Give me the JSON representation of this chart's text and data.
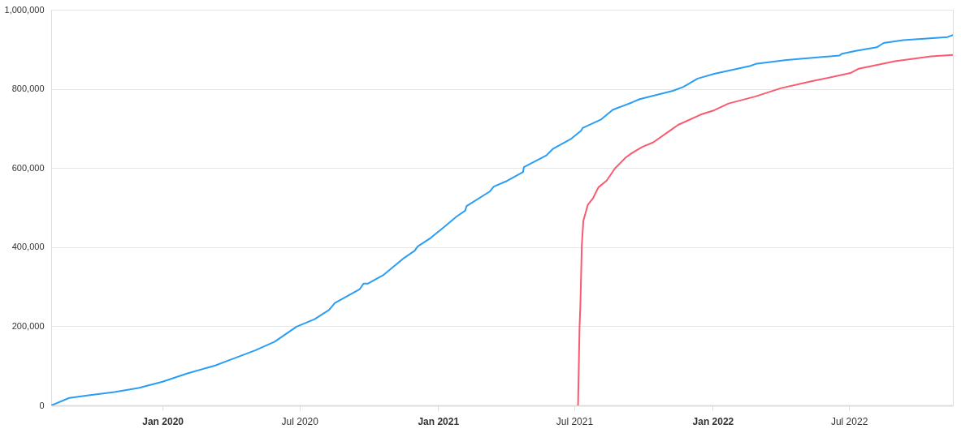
{
  "chart_data": {
    "type": "line",
    "xlim": [
      "2019-08-06",
      "2022-11-16"
    ],
    "xticks": [
      {
        "value": "2020-01-01",
        "label": "Jan 2020"
      },
      {
        "value": "2020-07-01",
        "label": "Jul 2020"
      },
      {
        "value": "2021-01-01",
        "label": "Jan 2021"
      },
      {
        "value": "2021-07-01",
        "label": "Jul 2021"
      },
      {
        "value": "2022-01-01",
        "label": "Jan 2022"
      },
      {
        "value": "2022-07-01",
        "label": "Jul 2022"
      }
    ],
    "ylim": [
      0,
      1000000
    ],
    "yticks": [
      0,
      {
        "value": 200000,
        "label": "200,000"
      },
      {
        "value": 400000,
        "label": "400,000"
      },
      {
        "value": 600000,
        "label": "600,000"
      },
      {
        "value": 800000,
        "label": "800,000"
      },
      {
        "value": 1000000,
        "label": "1,000,000"
      }
    ],
    "grid": "y",
    "series": [
      {
        "color": "#2a9df4",
        "x": [
          "2019-08-06",
          "2019-08-30",
          "2019-09-27",
          "2019-10-29",
          "2019-11-30",
          "2020-01-01",
          "2020-02-03",
          "2020-03-11",
          "2020-03-29",
          "2020-05-03",
          "2020-05-29",
          "2020-06-27",
          "2020-07-21",
          "2020-08-09",
          "2020-08-17",
          "2020-09-19",
          "2020-09-24",
          "2020-09-30",
          "2020-10-20",
          "2020-11-15",
          "2020-12-01",
          "2020-12-05",
          "2020-12-22",
          "2021-01-09",
          "2021-01-26",
          "2021-02-06",
          "2021-02-08",
          "2021-03-11",
          "2021-03-16",
          "2021-04-01",
          "2021-04-24",
          "2021-04-25",
          "2021-05-25",
          "2021-06-03",
          "2021-06-27",
          "2021-07-10",
          "2021-07-12",
          "2021-08-05",
          "2021-08-21",
          "2021-09-16",
          "2021-09-26",
          "2021-11-09",
          "2021-11-23",
          "2021-12-12",
          "2022-01-03",
          "2022-02-20",
          "2022-02-27",
          "2022-04-09",
          "2022-06-18",
          "2022-06-22",
          "2022-07-10",
          "2022-08-07",
          "2022-08-16",
          "2022-09-11",
          "2022-11-09",
          "2022-11-16"
        ],
        "values": [
          0,
          19000,
          26000,
          34000,
          44000,
          60000,
          81000,
          101000,
          114000,
          139000,
          161000,
          199000,
          218000,
          241000,
          259000,
          294000,
          308000,
          308000,
          329000,
          370000,
          391000,
          402000,
          423000,
          451000,
          478000,
          492000,
          504000,
          541000,
          553000,
          566000,
          590000,
          602000,
          632000,
          649000,
          674000,
          694000,
          701000,
          722000,
          747000,
          766000,
          774000,
          795000,
          805000,
          826000,
          838000,
          858000,
          863000,
          873000,
          884000,
          889000,
          896000,
          905000,
          916000,
          923000,
          931000,
          936000
        ]
      },
      {
        "color": "#f95a6f",
        "x": [
          "2021-07-06",
          "2021-07-08",
          "2021-07-09",
          "2021-07-11",
          "2021-07-13",
          "2021-07-19",
          "2021-07-26",
          "2021-08-02",
          "2021-08-13",
          "2021-08-24",
          "2021-09-07",
          "2021-09-15",
          "2021-09-29",
          "2021-10-14",
          "2021-11-07",
          "2021-11-16",
          "2021-12-16",
          "2022-01-03",
          "2022-01-22",
          "2022-02-27",
          "2022-04-02",
          "2022-05-12",
          "2022-07-03",
          "2022-07-14",
          "2022-08-31",
          "2022-10-18",
          "2022-11-16"
        ],
        "values": [
          0,
          199000,
          247000,
          404000,
          466000,
          507000,
          524000,
          551000,
          568000,
          599000,
          626000,
          637000,
          653000,
          665000,
          697000,
          709000,
          735000,
          746000,
          763000,
          781000,
          802000,
          819000,
          840000,
          851000,
          870000,
          882000,
          886000
        ]
      }
    ]
  }
}
